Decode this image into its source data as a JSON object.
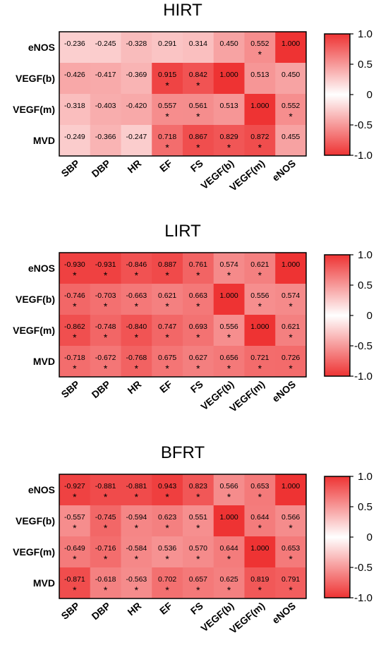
{
  "chart_data": [
    {
      "type": "heatmap",
      "title": "HIRT",
      "rows": [
        "eNOS",
        "VEGF(b)",
        "VEGF(m)",
        "MVD"
      ],
      "columns": [
        "SBP",
        "DBP",
        "HR",
        "EF",
        "FS",
        "VEGF(b)",
        "VEGF(m)",
        "eNOS"
      ],
      "cells": [
        [
          "-0.236",
          "-0.245",
          "-0.328",
          "0.291",
          "0.314",
          "0.450",
          "0.552",
          "1.000"
        ],
        [
          "-0.426",
          "-0.417",
          "-0.369",
          "0.915",
          "0.842",
          "1.000",
          "0.513",
          "0.450"
        ],
        [
          "-0.318",
          "-0.403",
          "-0.420",
          "0.557",
          "0.561",
          "0.513",
          "1.000",
          "0.552"
        ],
        [
          "-0.249",
          "-0.366",
          "-0.247",
          "0.718",
          "0.867",
          "0.829",
          "0.872",
          "0.455"
        ]
      ],
      "significant": [
        [
          0,
          0,
          0,
          0,
          0,
          0,
          1,
          0
        ],
        [
          0,
          0,
          0,
          1,
          1,
          0,
          0,
          0
        ],
        [
          0,
          0,
          0,
          1,
          1,
          0,
          0,
          1
        ],
        [
          0,
          0,
          0,
          1,
          1,
          1,
          1,
          0
        ]
      ],
      "colorbar_ticks": [
        "1.0",
        "0.5",
        "0",
        "-0.5",
        "-1.0"
      ],
      "vmin": -1.0,
      "vmax": 1.0,
      "significance_mark": "*"
    },
    {
      "type": "heatmap",
      "title": "LIRT",
      "rows": [
        "eNOS",
        "VEGF(b)",
        "VEGF(m)",
        "MVD"
      ],
      "columns": [
        "SBP",
        "DBP",
        "HR",
        "EF",
        "FS",
        "VEGF(b)",
        "VEGF(m)",
        "eNOS"
      ],
      "cells": [
        [
          "-0.930",
          "-0.931",
          "-0.846",
          "0.887",
          "0.761",
          "0.574",
          "0.621",
          "1.000"
        ],
        [
          "-0.746",
          "-0.703",
          "-0.663",
          "0.621",
          "0.663",
          "1.000",
          "0.556",
          "0.574"
        ],
        [
          "-0.862",
          "-0.748",
          "-0.840",
          "0.747",
          "0.693",
          "0.556",
          "1.000",
          "0.621"
        ],
        [
          "-0.718",
          "-0.672",
          "-0.768",
          "0.675",
          "0.627",
          "0.656",
          "0.721",
          "0.726"
        ]
      ],
      "significant": [
        [
          1,
          1,
          1,
          1,
          1,
          1,
          1,
          0
        ],
        [
          1,
          1,
          1,
          1,
          1,
          0,
          1,
          1
        ],
        [
          1,
          1,
          1,
          1,
          1,
          1,
          0,
          1
        ],
        [
          1,
          1,
          1,
          1,
          1,
          1,
          1,
          1
        ]
      ],
      "colorbar_ticks": [
        "1.0",
        "0.5",
        "0",
        "-0.5",
        "-1.0"
      ],
      "vmin": -1.0,
      "vmax": 1.0,
      "significance_mark": "*"
    },
    {
      "type": "heatmap",
      "title": "BFRT",
      "rows": [
        "eNOS",
        "VEGF(b)",
        "VEGF(m)",
        "MVD"
      ],
      "columns": [
        "SBP",
        "DBP",
        "HR",
        "EF",
        "FS",
        "VEGF(b)",
        "VEGF(m)",
        "eNOS"
      ],
      "cells": [
        [
          "-0.927",
          "-0.881",
          "-0.881",
          "0.943",
          "0.823",
          "0.566",
          "0.653",
          "1.000"
        ],
        [
          "-0.557",
          "-0.745",
          "-0.594",
          "0.623",
          "0.551",
          "1.000",
          "0.644",
          "0.566"
        ],
        [
          "-0.649",
          "-0.716",
          "-0.584",
          "0.536",
          "0.570",
          "0.644",
          "1.000",
          "0.653"
        ],
        [
          "-0.871",
          "-0.618",
          "-0.563",
          "0.702",
          "0.657",
          "0.625",
          "0.819",
          "0.791"
        ]
      ],
      "significant": [
        [
          1,
          1,
          1,
          1,
          1,
          1,
          1,
          0
        ],
        [
          1,
          1,
          1,
          1,
          1,
          0,
          1,
          1
        ],
        [
          1,
          1,
          1,
          1,
          1,
          1,
          0,
          1
        ],
        [
          1,
          1,
          1,
          1,
          1,
          1,
          1,
          1
        ]
      ],
      "colorbar_ticks": [
        "1.0",
        "0.5",
        "0",
        "-0.5",
        "-1.0"
      ],
      "vmin": -1.0,
      "vmax": 1.0,
      "significance_mark": "*"
    }
  ],
  "colors": {
    "extreme": "#ee3333",
    "center": "#ffffff",
    "border": "#000000"
  }
}
